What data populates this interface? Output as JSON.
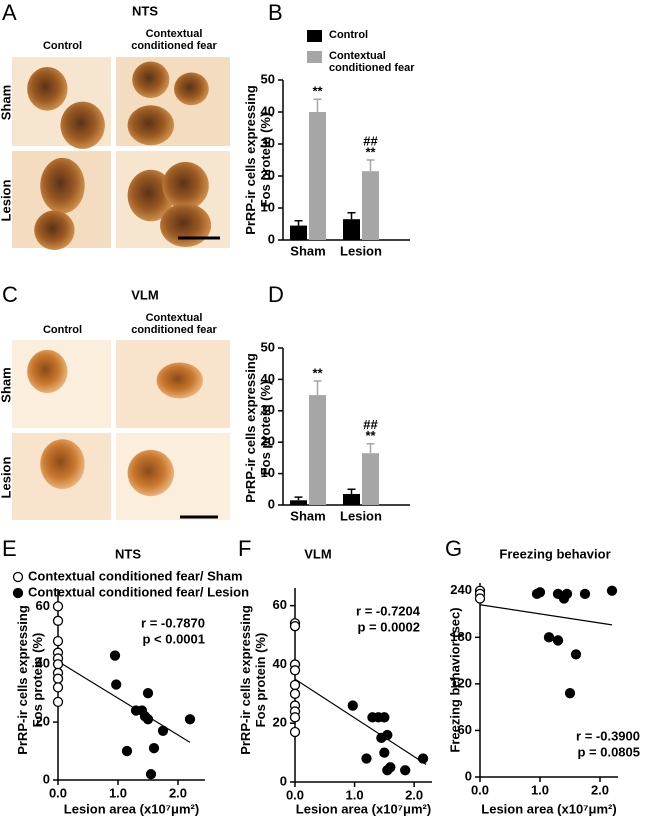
{
  "micrographs": [
    {
      "panel": "A",
      "title": "NTS",
      "columns": [
        "Control",
        "Contextual conditioned fear"
      ],
      "rows": [
        "Sham",
        "Lesion"
      ]
    },
    {
      "panel": "C",
      "title": "VLM",
      "columns": [
        "Control",
        "Contextual conditioned fear"
      ],
      "rows": [
        "Sham",
        "Lesion"
      ]
    }
  ],
  "chart_data": [
    {
      "type": "bar",
      "panel": "B",
      "y_label": "PrRP-ir cells expressing Fos protein (%)",
      "categories": [
        "Sham",
        "Lesion"
      ],
      "series": [
        {
          "name": "Control",
          "color": "#000000",
          "values": [
            4.5,
            6.5
          ],
          "errors": [
            1.5,
            2
          ]
        },
        {
          "name": "Contextual conditioned fear",
          "color": "#a6a6a6",
          "values": [
            40,
            21.5
          ],
          "errors": [
            4,
            3.5
          ],
          "annotations": [
            [
              "**"
            ],
            [
              "##",
              "**"
            ]
          ]
        }
      ],
      "ylim": [
        0,
        50
      ],
      "yticks": [
        0,
        10,
        20,
        30,
        40,
        50
      ],
      "legend": "top"
    },
    {
      "type": "bar",
      "panel": "D",
      "y_label": "PrRP-ir cells expressing Fos protein (%)",
      "categories": [
        "Sham",
        "Lesion"
      ],
      "series": [
        {
          "color": "#000000",
          "values": [
            1.5,
            3.5
          ],
          "errors": [
            1,
            1.5
          ]
        },
        {
          "color": "#a6a6a6",
          "values": [
            35,
            16.5
          ],
          "errors": [
            4.5,
            3
          ],
          "annotations": [
            [
              "**"
            ],
            [
              "##",
              "**"
            ]
          ]
        }
      ],
      "ylim": [
        0,
        50
      ],
      "yticks": [
        0,
        10,
        20,
        30,
        40,
        50
      ]
    },
    {
      "type": "scatter",
      "panel": "E",
      "title": "NTS",
      "x_label": "Lesion area (x10⁷μm²)",
      "y_label": "PrRP-ir cells expressing Fos protein (%)",
      "series": [
        {
          "name": "Contextual conditioned fear/ Sham",
          "marker": "open",
          "color": "#000000",
          "x": [
            0,
            0,
            0,
            0,
            0,
            0,
            0,
            0,
            0,
            0
          ],
          "y": [
            60,
            55,
            48,
            44,
            42,
            40,
            37,
            35,
            32,
            27
          ]
        },
        {
          "name": "Contextual conditioned fear/ Lesion",
          "marker": "filled",
          "color": "#000000",
          "x": [
            0.95,
            0.97,
            1.15,
            1.3,
            1.4,
            1.45,
            1.5,
            1.5,
            1.55,
            1.6,
            1.75,
            2.2
          ],
          "y": [
            43,
            33,
            10,
            24,
            24,
            22,
            30,
            21,
            2,
            11,
            17,
            21
          ]
        }
      ],
      "fit": {
        "x": [
          0,
          2.2
        ],
        "y": [
          41,
          13
        ]
      },
      "annotations": [
        "r = -0.7870",
        "p < 0.0001"
      ],
      "xlim": [
        0,
        2.45
      ],
      "ylim": [
        0,
        66
      ],
      "xticks": [
        {
          "value": 0,
          "label": "0.0"
        },
        {
          "value": 1,
          "label": "1.0"
        },
        {
          "value": 2,
          "label": "2.0"
        }
      ],
      "yticks": [
        0,
        20,
        40,
        60
      ],
      "legend": "upper left"
    },
    {
      "type": "scatter",
      "panel": "F",
      "title": "VLM",
      "x_label": "Lesion area (x10⁷μm²)",
      "y_label": "PrRP-ir cells expressing Fos protein (%)",
      "series": [
        {
          "marker": "open",
          "color": "#000000",
          "x": [
            0,
            0,
            0,
            0,
            0,
            0,
            0,
            0,
            0,
            0
          ],
          "y": [
            54,
            53,
            40,
            38,
            33,
            30,
            26,
            24,
            22,
            17
          ]
        },
        {
          "marker": "filled",
          "color": "#000000",
          "x": [
            0.97,
            1.2,
            1.3,
            1.4,
            1.45,
            1.5,
            1.5,
            1.55,
            1.55,
            1.6,
            1.85,
            2.15
          ],
          "y": [
            26,
            8,
            22,
            22,
            15,
            22,
            10,
            16,
            4,
            5,
            4,
            8
          ]
        }
      ],
      "fit": {
        "x": [
          0,
          2.2
        ],
        "y": [
          35,
          6
        ]
      },
      "annotations": [
        "r = -0.7204",
        "p = 0.0002"
      ],
      "xlim": [
        0,
        2.3
      ],
      "ylim": [
        0,
        66
      ],
      "xticks": [
        {
          "value": 0,
          "label": "0.0"
        },
        {
          "value": 1,
          "label": "1.0"
        },
        {
          "value": 2,
          "label": "2.0"
        }
      ],
      "yticks": [
        0,
        20,
        40,
        60
      ]
    },
    {
      "type": "scatter",
      "panel": "G",
      "title": "Freezing behavior",
      "x_label": "Lesion area (x10⁷μm²)",
      "y_label": "Freezing behavior (sec)",
      "series": [
        {
          "marker": "open",
          "color": "#000000",
          "x": [
            0,
            0,
            0
          ],
          "y": [
            240,
            236,
            230
          ]
        },
        {
          "marker": "filled",
          "color": "#000000",
          "x": [
            0.95,
            1.0,
            1.15,
            1.3,
            1.3,
            1.4,
            1.4,
            1.45,
            1.5,
            1.6,
            1.75,
            2.2
          ],
          "y": [
            236,
            238,
            180,
            176,
            236,
            232,
            230,
            236,
            108,
            158,
            236,
            240
          ]
        }
      ],
      "fit": {
        "x": [
          0,
          2.2
        ],
        "y": [
          222,
          196
        ]
      },
      "annotations": [
        "r = -0.3900",
        "p = 0.0805"
      ],
      "xlim": [
        0,
        2.3
      ],
      "ylim": [
        0,
        250
      ],
      "xticks": [
        {
          "value": 0,
          "label": "0.0"
        },
        {
          "value": 1,
          "label": "1.0"
        },
        {
          "value": 2,
          "label": "2.0"
        }
      ],
      "yticks": [
        0,
        60,
        120,
        180,
        240
      ]
    }
  ]
}
